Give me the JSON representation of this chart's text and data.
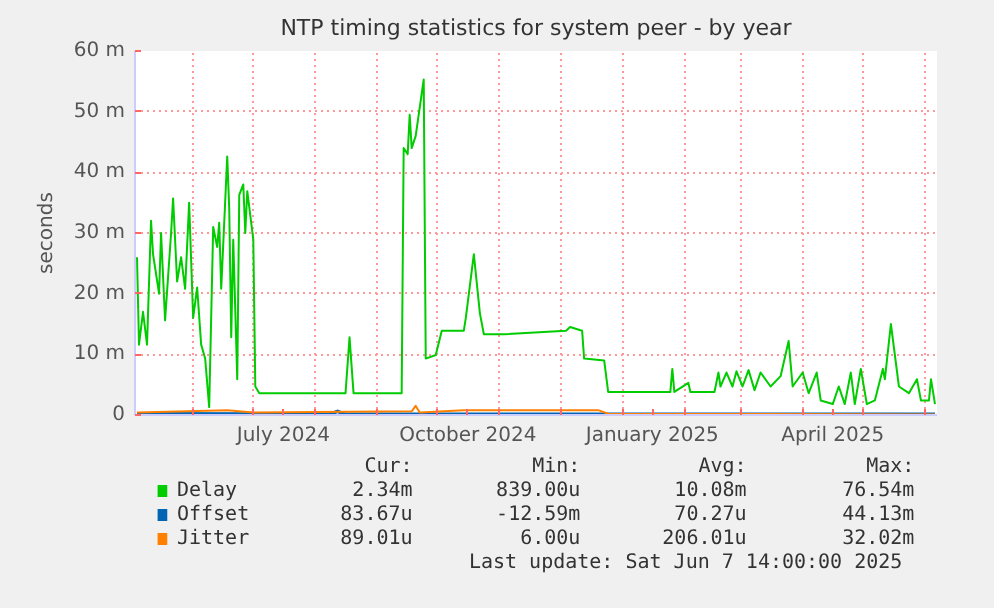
{
  "chart_data": {
    "type": "line",
    "title": "NTP timing statistics for system peer - by year",
    "ylabel": "seconds",
    "xlim": [
      "2024-05-03",
      "2025-06-07"
    ],
    "ylim": [
      0,
      60
    ],
    "yticks": [
      0,
      {
        "value": 10,
        "label": "10 m"
      },
      {
        "value": 20,
        "label": "20 m"
      },
      {
        "value": 30,
        "label": "30 m"
      },
      {
        "value": 40,
        "label": "40 m"
      },
      {
        "value": 50,
        "label": "50 m"
      },
      {
        "value": 60,
        "label": "60 m"
      }
    ],
    "xticks": [
      {
        "value": "2024-06-01",
        "label": null
      },
      {
        "value": "2024-07-01",
        "label": null
      },
      {
        "value": "2024-07-16",
        "label": "July 2024"
      },
      {
        "value": "2024-08-01",
        "label": null
      },
      {
        "value": "2024-09-01",
        "label": null
      },
      {
        "value": "2024-10-01",
        "label": null
      },
      {
        "value": "2024-10-16",
        "label": "October 2024"
      },
      {
        "value": "2024-11-01",
        "label": null
      },
      {
        "value": "2024-12-01",
        "label": null
      },
      {
        "value": "2025-01-01",
        "label": null
      },
      {
        "value": "2025-01-16",
        "label": "January 2025"
      },
      {
        "value": "2025-02-01",
        "label": null
      },
      {
        "value": "2025-03-01",
        "label": null
      },
      {
        "value": "2025-04-01",
        "label": null
      },
      {
        "value": "2025-04-16",
        "label": "April 2025"
      },
      {
        "value": "2025-05-01",
        "label": null
      },
      {
        "value": "2025-06-01",
        "label": null
      }
    ],
    "grid": true,
    "legend": "bottom",
    "series": [
      {
        "name": "Delay",
        "color": "#00cc00",
        "x": [
          "2024-05-04",
          "2024-05-05",
          "2024-05-07",
          "2024-05-09",
          "2024-05-11",
          "2024-05-12",
          "2024-05-15",
          "2024-05-16",
          "2024-05-18",
          "2024-05-21",
          "2024-05-22",
          "2024-05-24",
          "2024-05-26",
          "2024-05-28",
          "2024-05-30",
          "2024-06-01",
          "2024-06-03",
          "2024-06-05",
          "2024-06-07",
          "2024-06-09",
          "2024-06-11",
          "2024-06-13",
          "2024-06-14",
          "2024-06-15",
          "2024-06-18",
          "2024-06-19",
          "2024-06-20",
          "2024-06-21",
          "2024-06-23",
          "2024-06-24",
          "2024-06-26",
          "2024-06-27",
          "2024-06-28",
          "2024-07-01",
          "2024-07-02",
          "2024-07-04",
          "2024-08-16",
          "2024-08-18",
          "2024-08-20",
          "2024-09-13",
          "2024-09-14",
          "2024-09-16",
          "2024-09-17",
          "2024-09-18",
          "2024-09-20",
          "2024-09-24",
          "2024-09-25",
          "2024-09-30",
          "2024-10-03",
          "2024-10-14",
          "2024-10-15",
          "2024-10-19",
          "2024-10-22",
          "2024-10-24",
          "2024-11-03",
          "2024-12-04",
          "2024-12-06",
          "2024-12-12",
          "2024-12-13",
          "2024-12-23",
          "2024-12-25",
          "2025-01-25",
          "2025-01-26",
          "2025-01-27",
          "2025-02-03",
          "2025-02-04",
          "2025-02-16",
          "2025-02-18",
          "2025-02-19",
          "2025-02-22",
          "2025-02-25",
          "2025-02-27",
          "2025-03-02",
          "2025-03-05",
          "2025-03-08",
          "2025-03-11",
          "2025-03-16",
          "2025-03-21",
          "2025-03-25",
          "2025-03-27",
          "2025-04-01",
          "2025-04-04",
          "2025-04-08",
          "2025-04-10",
          "2025-04-16",
          "2025-04-19",
          "2025-04-22",
          "2025-04-25",
          "2025-04-27",
          "2025-04-30",
          "2025-05-03",
          "2025-05-07",
          "2025-05-11",
          "2025-05-12",
          "2025-05-15",
          "2025-05-19",
          "2025-05-24",
          "2025-05-28",
          "2025-05-30",
          "2025-06-03",
          "2025-06-04",
          "2025-06-06"
        ],
        "values": [
          26,
          11.6,
          17,
          11.6,
          32,
          26.5,
          20,
          30,
          15.6,
          30,
          35.7,
          22,
          26,
          20.8,
          35,
          16,
          21,
          11.6,
          9.3,
          1.3,
          31,
          27.7,
          31.7,
          20.8,
          42.6,
          34,
          12.8,
          28.9,
          5.9,
          36.3,
          38,
          30,
          36.9,
          28.9,
          4.7,
          3.6,
          3.6,
          12.8,
          3.6,
          3.6,
          44,
          43,
          49.5,
          44,
          46,
          55.3,
          9.3,
          9.9,
          13.9,
          13.9,
          16,
          26.5,
          16.8,
          13.3,
          13.3,
          13.9,
          14.5,
          13.9,
          9.3,
          9,
          3.8,
          3.8,
          7.6,
          3.8,
          5.3,
          3.8,
          3.8,
          7,
          4.7,
          7,
          4.7,
          7.2,
          4.7,
          7.4,
          4.1,
          7,
          4.7,
          6.4,
          12.2,
          4.7,
          7,
          3.6,
          7,
          2.4,
          1.8,
          4.7,
          1.8,
          7,
          1.8,
          7.6,
          1.8,
          2.4,
          7.6,
          5.9,
          15,
          4.7,
          3.6,
          5.9,
          2.4,
          2.4,
          5.9,
          1.8
        ]
      },
      {
        "name": "Offset",
        "color": "#0066b3",
        "x": [
          "2024-05-04",
          "2024-08-08",
          "2024-08-12",
          "2024-08-16",
          "2025-06-06"
        ],
        "values": [
          0.2,
          0.1,
          0.6,
          0.1,
          0.1
        ]
      },
      {
        "name": "Jitter",
        "color": "#ff8000",
        "x": [
          "2024-05-04",
          "2024-06-18",
          "2024-07-01",
          "2024-09-18",
          "2024-09-20",
          "2024-09-22",
          "2024-10-14",
          "2024-12-20",
          "2024-12-25",
          "2025-06-06"
        ],
        "values": [
          0.4,
          0.8,
          0.4,
          0.6,
          1.5,
          0.4,
          0.8,
          0.8,
          0.2,
          0.1
        ]
      }
    ],
    "annotations": [
      "Cur:",
      "Min:",
      "Avg:",
      "Max:",
      "2.34m",
      "839.00u",
      "10.08m",
      "76.54m",
      "83.67u",
      "-12.59m",
      "70.27u",
      "44.13m",
      "89.01u",
      "6.00u",
      "206.01u",
      "32.02m",
      "Last update: Sat Jun  7 14:00:00 2025"
    ]
  }
}
